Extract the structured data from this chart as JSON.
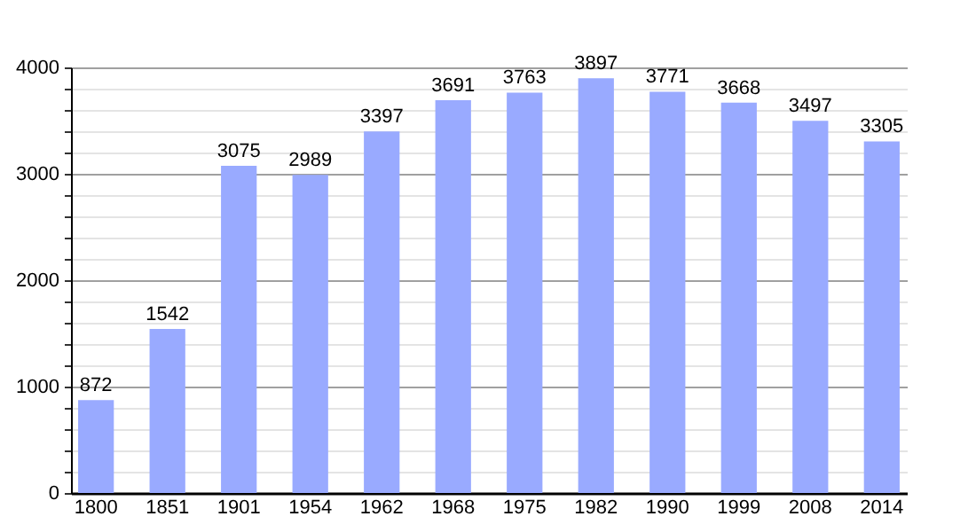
{
  "chart_data": {
    "type": "bar",
    "categories": [
      "1800",
      "1851",
      "1901",
      "1954",
      "1962",
      "1968",
      "1975",
      "1982",
      "1990",
      "1999",
      "2008",
      "2014"
    ],
    "values": [
      872,
      1542,
      3075,
      2989,
      3397,
      3691,
      3763,
      3897,
      3771,
      3668,
      3497,
      3305
    ],
    "color": "#99aaff",
    "ylim": [
      0,
      4000
    ],
    "yticks": [
      0,
      {
        "value": 200,
        "label": null
      },
      {
        "value": 400,
        "label": null
      },
      {
        "value": 600,
        "label": null
      },
      {
        "value": 800,
        "label": null
      },
      1000,
      {
        "value": 1200,
        "label": null
      },
      {
        "value": 1400,
        "label": null
      },
      {
        "value": 1600,
        "label": null
      },
      {
        "value": 1800,
        "label": null
      },
      2000,
      {
        "value": 2200,
        "label": null
      },
      {
        "value": 2400,
        "label": null
      },
      {
        "value": 2600,
        "label": null
      },
      {
        "value": 2800,
        "label": null
      },
      3000,
      {
        "value": 3200,
        "label": null
      },
      {
        "value": 3400,
        "label": null
      },
      {
        "value": 3600,
        "label": null
      },
      {
        "value": 3800,
        "label": null
      },
      4000
    ],
    "grid": "y",
    "data_labels": true
  }
}
